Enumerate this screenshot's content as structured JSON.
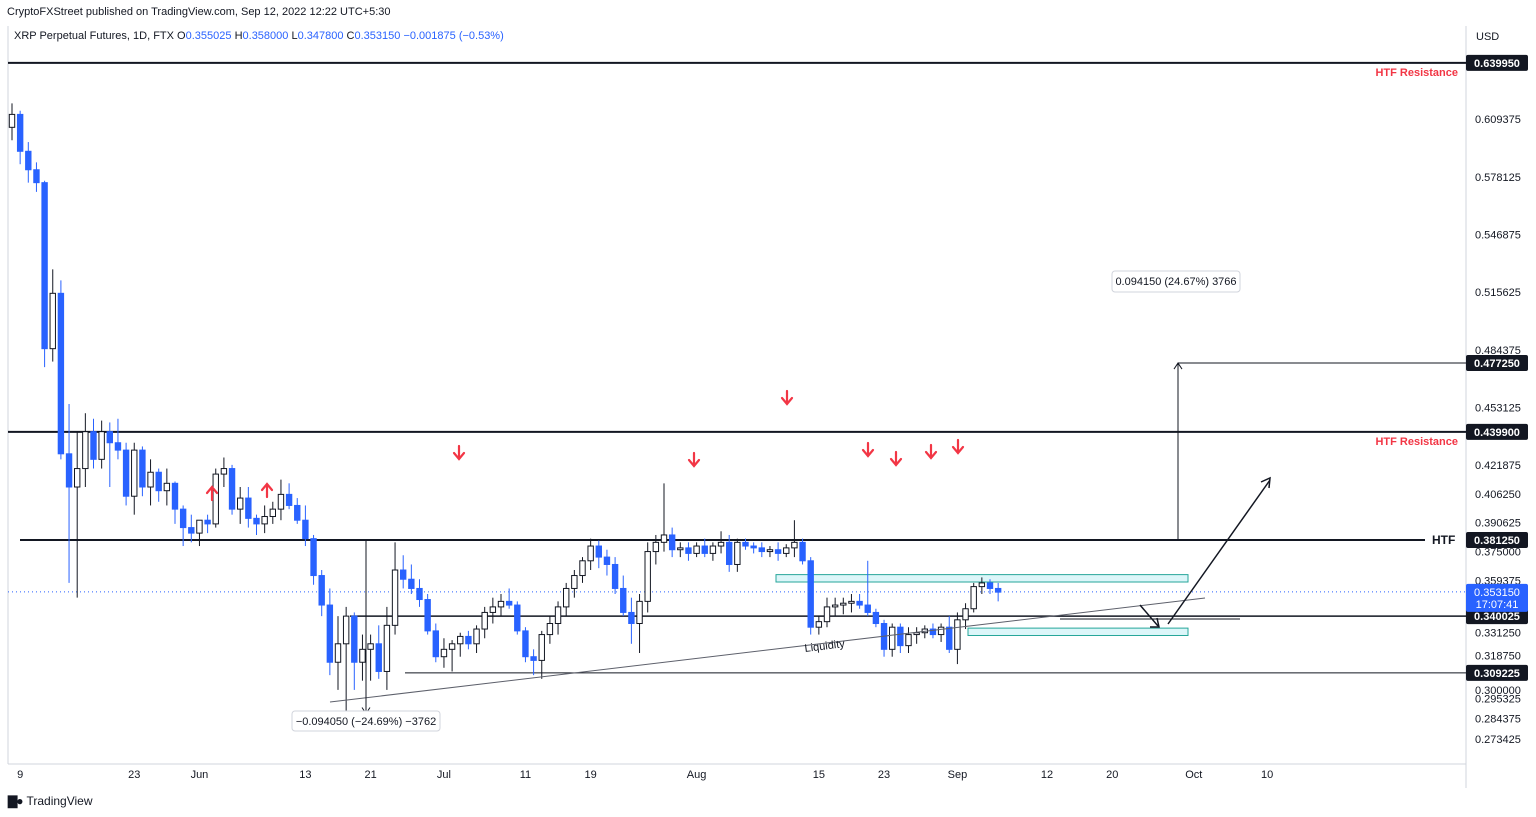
{
  "header": {
    "published": "CryptoFXStreet published on TradingView.com, Sep 12, 2022 12:22 UTC+5:30"
  },
  "legend": {
    "symbol": "XRP Perpetual Futures, 1D, FTX",
    "o_label": "O",
    "o": "0.355025",
    "h_label": "H",
    "h": "0.358000",
    "l_label": "L",
    "l": "0.347800",
    "c_label": "C",
    "c": "0.353150",
    "change": "−0.001875 (−0.53%)"
  },
  "colors": {
    "bull": "#ffffff",
    "bear": "#2962ff",
    "outline": "#131722",
    "arrow": "#f23645",
    "zone": "#b2ebf2",
    "price_tag": "#2962ff"
  },
  "chart_data": {
    "type": "candlestick",
    "currency": "USD",
    "ylim": [
      0.262,
      0.648
    ],
    "y_ticks": [
      "0.609375",
      "0.578125",
      "0.546875",
      "0.515625",
      "0.484375",
      "0.453125",
      "0.421875",
      "0.406250",
      "0.390625",
      "0.375000",
      "0.359375",
      "0.331250",
      "0.318750",
      "0.300000",
      "0.295325",
      "0.284375",
      "0.273425"
    ],
    "x_ticks": [
      {
        "label": "9",
        "i": 1
      },
      {
        "label": "23",
        "i": 15
      },
      {
        "label": "Jun",
        "i": 23
      },
      {
        "label": "13",
        "i": 36
      },
      {
        "label": "21",
        "i": 44
      },
      {
        "label": "Jul",
        "i": 53
      },
      {
        "label": "11",
        "i": 63
      },
      {
        "label": "19",
        "i": 71
      },
      {
        "label": "Aug",
        "i": 84
      },
      {
        "label": "15",
        "i": 99
      },
      {
        "label": "23",
        "i": 107
      },
      {
        "label": "Sep",
        "i": 116
      },
      {
        "label": "12",
        "i": 127
      },
      {
        "label": "20",
        "i": 135
      },
      {
        "label": "Oct",
        "i": 145
      },
      {
        "label": "10",
        "i": 154
      }
    ],
    "ohlc": [
      [
        0.605,
        0.618,
        0.598,
        0.612
      ],
      [
        0.612,
        0.614,
        0.585,
        0.592
      ],
      [
        0.592,
        0.597,
        0.575,
        0.582
      ],
      [
        0.582,
        0.586,
        0.57,
        0.575
      ],
      [
        0.575,
        0.576,
        0.475,
        0.485
      ],
      [
        0.485,
        0.528,
        0.478,
        0.515
      ],
      [
        0.515,
        0.522,
        0.425,
        0.428
      ],
      [
        0.428,
        0.455,
        0.358,
        0.41
      ],
      [
        0.41,
        0.44,
        0.35,
        0.42
      ],
      [
        0.42,
        0.45,
        0.41,
        0.44
      ],
      [
        0.44,
        0.447,
        0.42,
        0.425
      ],
      [
        0.425,
        0.446,
        0.42,
        0.44
      ],
      [
        0.44,
        0.445,
        0.41,
        0.434
      ],
      [
        0.434,
        0.447,
        0.425,
        0.43
      ],
      [
        0.43,
        0.434,
        0.4,
        0.405
      ],
      [
        0.405,
        0.434,
        0.395,
        0.43
      ],
      [
        0.43,
        0.432,
        0.405,
        0.41
      ],
      [
        0.41,
        0.425,
        0.4,
        0.418
      ],
      [
        0.418,
        0.42,
        0.402,
        0.408
      ],
      [
        0.408,
        0.42,
        0.4,
        0.412
      ],
      [
        0.412,
        0.413,
        0.39,
        0.398
      ],
      [
        0.398,
        0.4,
        0.378,
        0.388
      ],
      [
        0.388,
        0.395,
        0.38,
        0.385
      ],
      [
        0.385,
        0.392,
        0.378,
        0.392
      ],
      [
        0.392,
        0.395,
        0.385,
        0.39
      ],
      [
        0.39,
        0.42,
        0.388,
        0.417
      ],
      [
        0.417,
        0.426,
        0.41,
        0.42
      ],
      [
        0.42,
        0.422,
        0.395,
        0.398
      ],
      [
        0.398,
        0.41,
        0.39,
        0.404
      ],
      [
        0.404,
        0.41,
        0.388,
        0.393
      ],
      [
        0.393,
        0.395,
        0.384,
        0.39
      ],
      [
        0.39,
        0.4,
        0.385,
        0.394
      ],
      [
        0.394,
        0.402,
        0.39,
        0.398
      ],
      [
        0.398,
        0.414,
        0.392,
        0.406
      ],
      [
        0.406,
        0.412,
        0.398,
        0.4
      ],
      [
        0.4,
        0.404,
        0.39,
        0.392
      ],
      [
        0.392,
        0.4,
        0.378,
        0.382
      ],
      [
        0.382,
        0.384,
        0.357,
        0.362
      ],
      [
        0.362,
        0.365,
        0.34,
        0.346
      ],
      [
        0.346,
        0.355,
        0.308,
        0.315
      ],
      [
        0.315,
        0.34,
        0.3,
        0.325
      ],
      [
        0.325,
        0.345,
        0.287,
        0.34
      ],
      [
        0.34,
        0.342,
        0.3,
        0.315
      ],
      [
        0.315,
        0.33,
        0.305,
        0.322
      ],
      [
        0.322,
        0.33,
        0.305,
        0.325
      ],
      [
        0.325,
        0.335,
        0.306,
        0.31
      ],
      [
        0.31,
        0.345,
        0.3,
        0.335
      ]
    ],
    "lines": [
      {
        "label": "0.639950",
        "value": 0.63995,
        "note": "HTF Resistance"
      },
      {
        "label": "0.439900",
        "value": 0.4399,
        "note": "HTF Resistance"
      },
      {
        "label": "0.381250",
        "value": 0.38125,
        "note": "HTF"
      },
      {
        "label": "0.340025",
        "value": 0.340025,
        "note": ""
      },
      {
        "label": "0.309225",
        "value": 0.309225,
        "note": ""
      },
      {
        "label": "0.477250",
        "value": 0.47725,
        "note": ""
      }
    ],
    "current_price": {
      "label": "0.353150",
      "countdown": "17:07:41",
      "value": 0.35315
    },
    "measure_up": "0.094150 (24.67%) 3766",
    "measure_down": "−0.094050 (−24.69%) −3762",
    "liquidity_label": "Liquidity"
  },
  "footer": {
    "brand": "TradingView"
  }
}
